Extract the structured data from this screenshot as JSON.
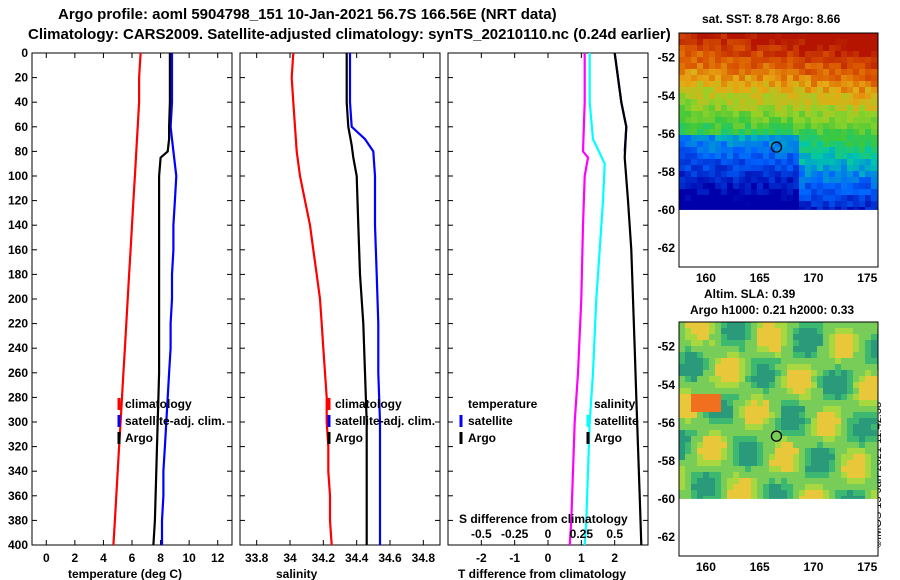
{
  "title_line1": "Argo profile: aoml 5904798_151 10-Jan-2021 56.7S 166.56E (NRT data)",
  "title_line2": "Climatology: CARS2009. Satellite-adjusted climatology: synTS_20210110.nc (0.24d earlier)",
  "sat_sst_label": "sat. SST: 8.78 Argo: 8.66",
  "altim_label": "Altim. SLA: 0.39",
  "argo_h_label": "Argo h1000: 0.21 h2000: 0.33",
  "credit": "©IMOS 15-Jan-2021 11:42:38",
  "colors": {
    "climatology": "#ff0000",
    "satellite": "#0000ff",
    "argo": "#000000",
    "t_diff": "#ff00ff",
    "s_diff": "#00ffff"
  },
  "chart_data": [
    {
      "type": "line",
      "id": "temperature",
      "xlabel": "temperature (deg C)",
      "ylabel": "",
      "xlim": [
        -1,
        13
      ],
      "ylim": [
        400,
        0
      ],
      "xticks": [
        0,
        2,
        4,
        6,
        8,
        10,
        12
      ],
      "yticks": [
        0,
        20,
        40,
        60,
        80,
        100,
        120,
        140,
        160,
        180,
        200,
        220,
        240,
        260,
        280,
        300,
        320,
        340,
        360,
        380,
        400
      ],
      "legend": [
        "climatology",
        "satellite-adj. clim.",
        "Argo"
      ],
      "series": [
        {
          "name": "climatology",
          "color": "climatology",
          "points": [
            [
              6.6,
              0
            ],
            [
              6.5,
              20
            ],
            [
              6.5,
              40
            ],
            [
              6.4,
              60
            ],
            [
              6.3,
              80
            ],
            [
              6.2,
              100
            ],
            [
              6.1,
              120
            ],
            [
              6.0,
              140
            ],
            [
              5.9,
              160
            ],
            [
              5.8,
              180
            ],
            [
              5.7,
              200
            ],
            [
              5.6,
              220
            ],
            [
              5.5,
              240
            ],
            [
              5.4,
              260
            ],
            [
              5.3,
              280
            ],
            [
              5.2,
              300
            ],
            [
              5.1,
              320
            ],
            [
              5.0,
              340
            ],
            [
              4.9,
              360
            ],
            [
              4.8,
              380
            ],
            [
              4.7,
              400
            ]
          ]
        },
        {
          "name": "satellite-adj. clim.",
          "color": "satellite",
          "points": [
            [
              8.8,
              0
            ],
            [
              8.8,
              20
            ],
            [
              8.8,
              40
            ],
            [
              8.7,
              60
            ],
            [
              8.9,
              80
            ],
            [
              9.1,
              100
            ],
            [
              9.0,
              120
            ],
            [
              8.9,
              140
            ],
            [
              8.9,
              160
            ],
            [
              8.8,
              180
            ],
            [
              8.8,
              200
            ],
            [
              8.7,
              220
            ],
            [
              8.7,
              240
            ],
            [
              8.6,
              260
            ],
            [
              8.5,
              280
            ],
            [
              8.4,
              300
            ],
            [
              8.3,
              320
            ],
            [
              8.2,
              340
            ],
            [
              8.2,
              360
            ],
            [
              8.1,
              380
            ],
            [
              8.1,
              400
            ]
          ]
        },
        {
          "name": "Argo",
          "color": "argo",
          "points": [
            [
              8.65,
              0
            ],
            [
              8.65,
              20
            ],
            [
              8.65,
              40
            ],
            [
              8.6,
              60
            ],
            [
              8.6,
              70
            ],
            [
              8.5,
              80
            ],
            [
              8.0,
              85
            ],
            [
              7.9,
              100
            ],
            [
              7.9,
              140
            ],
            [
              7.9,
              180
            ],
            [
              7.9,
              220
            ],
            [
              7.9,
              260
            ],
            [
              7.8,
              300
            ],
            [
              7.7,
              340
            ],
            [
              7.6,
              380
            ],
            [
              7.5,
              400
            ]
          ]
        }
      ]
    },
    {
      "type": "line",
      "id": "salinity",
      "xlabel": "salinity",
      "xlim": [
        33.7,
        34.9
      ],
      "ylim": [
        400,
        0
      ],
      "xticks": [
        33.8,
        34,
        34.2,
        34.4,
        34.6,
        34.8
      ],
      "legend": [
        "climatology",
        "satellite-adj. clim.",
        "Argo"
      ],
      "series": [
        {
          "name": "climatology",
          "color": "climatology",
          "points": [
            [
              34.02,
              0
            ],
            [
              34.01,
              20
            ],
            [
              34.02,
              40
            ],
            [
              34.03,
              60
            ],
            [
              34.04,
              80
            ],
            [
              34.06,
              100
            ],
            [
              34.09,
              120
            ],
            [
              34.12,
              140
            ],
            [
              34.14,
              160
            ],
            [
              34.16,
              180
            ],
            [
              34.18,
              200
            ],
            [
              34.19,
              220
            ],
            [
              34.2,
              240
            ],
            [
              34.21,
              260
            ],
            [
              34.22,
              280
            ],
            [
              34.22,
              300
            ],
            [
              34.23,
              320
            ],
            [
              34.23,
              340
            ],
            [
              34.24,
              360
            ],
            [
              34.24,
              380
            ],
            [
              34.25,
              400
            ]
          ]
        },
        {
          "name": "satellite-adj. clim.",
          "color": "satellite",
          "points": [
            [
              34.36,
              0
            ],
            [
              34.36,
              20
            ],
            [
              34.36,
              40
            ],
            [
              34.37,
              60
            ],
            [
              34.45,
              70
            ],
            [
              34.5,
              80
            ],
            [
              34.51,
              100
            ],
            [
              34.51,
              140
            ],
            [
              34.52,
              180
            ],
            [
              34.53,
              220
            ],
            [
              34.53,
              260
            ],
            [
              34.54,
              300
            ],
            [
              34.54,
              340
            ],
            [
              34.54,
              380
            ],
            [
              34.54,
              400
            ]
          ]
        },
        {
          "name": "Argo",
          "color": "argo",
          "points": [
            [
              34.34,
              0
            ],
            [
              34.34,
              20
            ],
            [
              34.34,
              40
            ],
            [
              34.35,
              60
            ],
            [
              34.37,
              75
            ],
            [
              34.38,
              85
            ],
            [
              34.4,
              100
            ],
            [
              34.41,
              140
            ],
            [
              34.42,
              180
            ],
            [
              34.44,
              220
            ],
            [
              34.45,
              260
            ],
            [
              34.46,
              300
            ],
            [
              34.46,
              340
            ],
            [
              34.46,
              380
            ],
            [
              34.46,
              400
            ]
          ]
        }
      ]
    },
    {
      "type": "line",
      "id": "difference",
      "xlabel": "T difference from climatology",
      "top_xlabel": "S difference from climatology",
      "xlim": [
        -3,
        3
      ],
      "ylim": [
        400,
        0
      ],
      "xticks": [
        -2,
        -1,
        0,
        1,
        2
      ],
      "top_xlim": [
        -0.75,
        0.75
      ],
      "top_xticks": [
        -0.5,
        -0.25,
        0,
        0.25,
        0.5
      ],
      "top_xtick_labels": [
        "-0.5",
        "-0.25",
        "0",
        "0.25",
        "0.5"
      ],
      "legend_left_title": "temperature",
      "legend_right_title": "salinity",
      "legend": [
        "satellite",
        "Argo"
      ],
      "series": [
        {
          "name": "T diff satellite",
          "color": "t_diff",
          "points": [
            [
              1.1,
              0
            ],
            [
              1.1,
              40
            ],
            [
              1.05,
              80
            ],
            [
              1.2,
              85
            ],
            [
              1.1,
              100
            ],
            [
              1.05,
              140
            ],
            [
              1.0,
              200
            ],
            [
              0.9,
              260
            ],
            [
              0.8,
              300
            ],
            [
              0.75,
              340
            ],
            [
              0.7,
              380
            ],
            [
              0.65,
              400
            ]
          ]
        },
        {
          "name": "S diff satellite",
          "color": "s_diff",
          "points": [
            [
              1.25,
              0
            ],
            [
              1.25,
              40
            ],
            [
              1.35,
              70
            ],
            [
              1.7,
              90
            ],
            [
              1.65,
              120
            ],
            [
              1.55,
              160
            ],
            [
              1.45,
              200
            ],
            [
              1.35,
              260
            ],
            [
              1.25,
              300
            ],
            [
              1.2,
              340
            ],
            [
              1.15,
              380
            ],
            [
              1.1,
              400
            ]
          ]
        },
        {
          "name": "Argo T diff",
          "color": "satellite",
          "points": [
            [
              2.0,
              0
            ],
            [
              2.1,
              20
            ],
            [
              2.2,
              40
            ],
            [
              2.35,
              60
            ],
            [
              2.3,
              80
            ]
          ]
        },
        {
          "name": "Argo",
          "color": "argo",
          "points": [
            [
              2.0,
              0
            ],
            [
              2.1,
              20
            ],
            [
              2.2,
              40
            ],
            [
              2.35,
              60
            ],
            [
              2.3,
              85
            ],
            [
              2.4,
              120
            ],
            [
              2.5,
              160
            ],
            [
              2.55,
              200
            ],
            [
              2.6,
              240
            ],
            [
              2.65,
              280
            ],
            [
              2.7,
              320
            ],
            [
              2.75,
              360
            ],
            [
              2.8,
              400
            ]
          ]
        }
      ]
    },
    {
      "type": "heatmap",
      "id": "sst-map",
      "xlim": [
        157.5,
        176
      ],
      "ylim": [
        -63,
        -50.7
      ],
      "xticks": [
        160,
        165,
        170,
        175
      ],
      "yticks": [
        -52,
        -54,
        -56,
        -58,
        -60,
        -62
      ],
      "argo_position": [
        166.56,
        -56.7
      ]
    },
    {
      "type": "heatmap",
      "id": "sla-map",
      "xlim": [
        157.5,
        176
      ],
      "ylim": [
        -63,
        -50.7
      ],
      "xticks": [
        160,
        165,
        170,
        175
      ],
      "yticks": [
        -52,
        -54,
        -56,
        -58,
        -60,
        -62
      ],
      "argo_position": [
        166.56,
        -56.7
      ]
    }
  ]
}
